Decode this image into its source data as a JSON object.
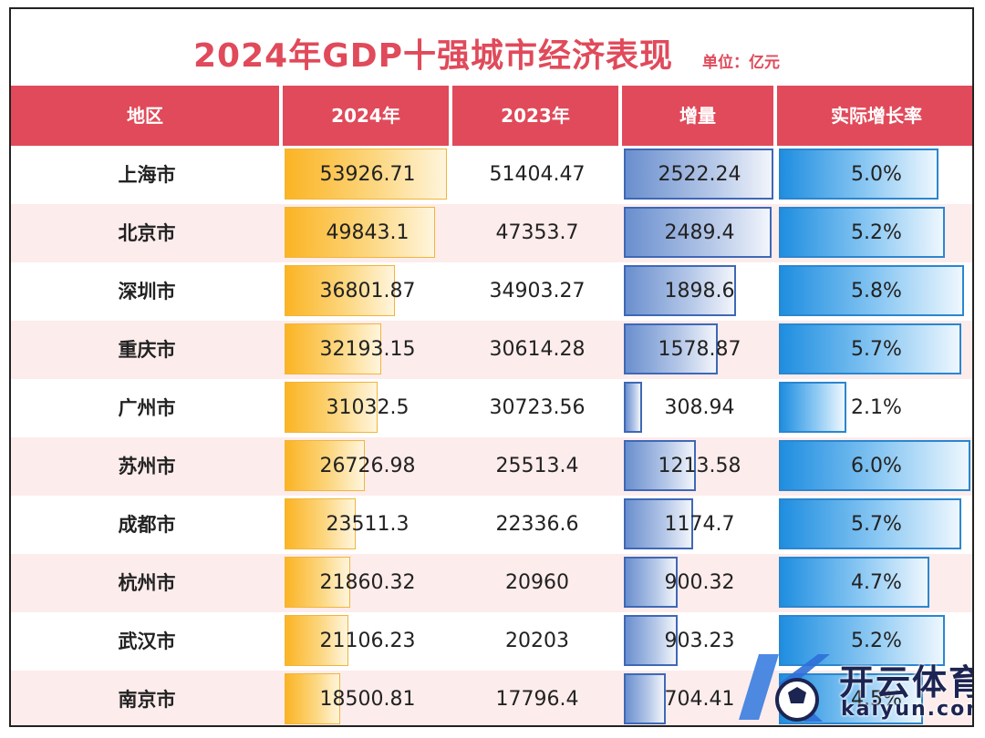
{
  "title": "2024年GDP十强城市经济表现",
  "unit": "单位：亿元",
  "headers": [
    "地区",
    "2024年",
    "2023年",
    "增量",
    "实际增长率"
  ],
  "rows": [
    {
      "city": "上海市",
      "gdp2024": "53926.71",
      "gdp2023": "51404.47",
      "increase": "2522.24",
      "rate": "5.0%"
    },
    {
      "city": "北京市",
      "gdp2024": "49843.1",
      "gdp2023": "47353.7",
      "increase": "2489.4",
      "rate": "5.2%"
    },
    {
      "city": "深圳市",
      "gdp2024": "36801.87",
      "gdp2023": "34903.27",
      "increase": "1898.6",
      "rate": "5.8%"
    },
    {
      "city": "重庆市",
      "gdp2024": "32193.15",
      "gdp2023": "30614.28",
      "increase": "1578.87",
      "rate": "5.7%"
    },
    {
      "city": "广州市",
      "gdp2024": "31032.5",
      "gdp2023": "30723.56",
      "increase": "308.94",
      "rate": "2.1%"
    },
    {
      "city": "苏州市",
      "gdp2024": "26726.98",
      "gdp2023": "25513.4",
      "increase": "1213.58",
      "rate": "6.0%"
    },
    {
      "city": "成都市",
      "gdp2024": "23511.3",
      "gdp2023": "22336.6",
      "increase": "1174.7",
      "rate": "5.7%"
    },
    {
      "city": "杭州市",
      "gdp2024": "21860.32",
      "gdp2023": "20960",
      "increase": "900.32",
      "rate": "4.7%"
    },
    {
      "city": "武汉市",
      "gdp2024": "21106.23",
      "gdp2023": "20203",
      "increase": "903.23",
      "rate": "5.2%"
    },
    {
      "city": "南京市",
      "gdp2024": "18500.81",
      "gdp2023": "17796.4",
      "increase": "704.41",
      "rate": "4.5%"
    }
  ],
  "watermark": {
    "cn": "开云体育",
    "en": "kaiyun.com"
  },
  "colors": {
    "header": "#e04a5a",
    "stripe": "#fdecec",
    "gdp_bar": "#fbb424",
    "increase_bar": "#6a8fce",
    "rate_bar": "#1f8ee0"
  }
}
